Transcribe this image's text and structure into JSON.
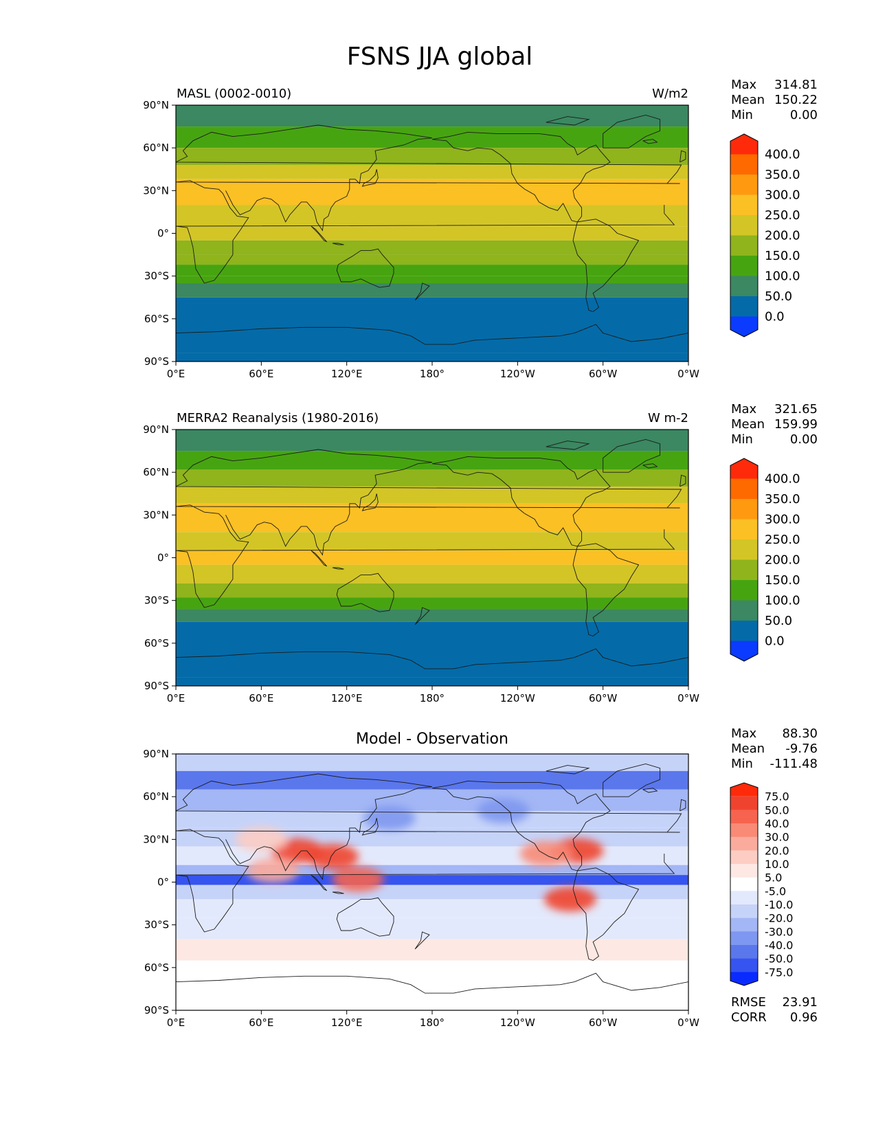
{
  "title": "FSNS JJA global",
  "chart_data": [
    {
      "type": "heatmap",
      "title": "MASL (0002-0010)",
      "units": "W/m2",
      "x_ticks": [
        "0°E",
        "60°E",
        "120°E",
        "180°",
        "120°W",
        "60°W",
        "0°W"
      ],
      "y_ticks": [
        "90°N",
        "60°N",
        "30°N",
        "0°",
        "30°S",
        "60°S",
        "90°S"
      ],
      "xlim": [
        0,
        360
      ],
      "ylim": [
        -90,
        90
      ],
      "stats": {
        "labels": [
          "Max",
          "Mean",
          "Min"
        ],
        "values": [
          "314.81",
          "150.22",
          "0.00"
        ]
      },
      "colorbar": {
        "levels": [
          "400.0",
          "350.0",
          "300.0",
          "250.0",
          "200.0",
          "150.0",
          "100.0",
          "50.0",
          "0.0"
        ],
        "colors": [
          "#ff2a0a",
          "#ff6a00",
          "#ff9a10",
          "#fbc024",
          "#d3c526",
          "#8fb41c",
          "#47a411",
          "#3b8862",
          "#046ba8",
          "#0a3bff"
        ]
      },
      "zonal_bands": [
        {
          "lat": [
            90,
            75
          ],
          "value": 80
        },
        {
          "lat": [
            75,
            60
          ],
          "value": 130
        },
        {
          "lat": [
            60,
            48
          ],
          "value": 160
        },
        {
          "lat": [
            48,
            38
          ],
          "value": 210
        },
        {
          "lat": [
            38,
            20
          ],
          "value": 255
        },
        {
          "lat": [
            20,
            5
          ],
          "value": 200
        },
        {
          "lat": [
            5,
            -5
          ],
          "value": 230
        },
        {
          "lat": [
            -5,
            -15
          ],
          "value": 190
        },
        {
          "lat": [
            -15,
            -22
          ],
          "value": 175
        },
        {
          "lat": [
            -22,
            -30
          ],
          "value": 130
        },
        {
          "lat": [
            -30,
            -35
          ],
          "value": 110
        },
        {
          "lat": [
            -35,
            -45
          ],
          "value": 80
        },
        {
          "lat": [
            -45,
            -84
          ],
          "value": 30
        },
        {
          "lat": [
            -84,
            -90
          ],
          "value": 0
        }
      ]
    },
    {
      "type": "heatmap",
      "title": "MERRA2 Reanalysis (1980-2016)",
      "units": "W m-2",
      "x_ticks": [
        "0°E",
        "60°E",
        "120°E",
        "180°",
        "120°W",
        "60°W",
        "0°W"
      ],
      "y_ticks": [
        "90°N",
        "60°N",
        "30°N",
        "0°",
        "30°S",
        "60°S",
        "90°S"
      ],
      "xlim": [
        0,
        360
      ],
      "ylim": [
        -90,
        90
      ],
      "stats": {
        "labels": [
          "Max",
          "Mean",
          "Min"
        ],
        "values": [
          "321.65",
          "159.99",
          "0.00"
        ]
      },
      "colorbar": {
        "levels": [
          "400.0",
          "350.0",
          "300.0",
          "250.0",
          "200.0",
          "150.0",
          "100.0",
          "50.0",
          "0.0"
        ],
        "colors": [
          "#ff2a0a",
          "#ff6a00",
          "#ff9a10",
          "#fbc024",
          "#d3c526",
          "#8fb41c",
          "#47a411",
          "#3b8862",
          "#046ba8",
          "#0a3bff"
        ]
      },
      "zonal_bands": [
        {
          "lat": [
            90,
            75
          ],
          "value": 80
        },
        {
          "lat": [
            75,
            62
          ],
          "value": 140
        },
        {
          "lat": [
            62,
            50
          ],
          "value": 180
        },
        {
          "lat": [
            50,
            38
          ],
          "value": 220
        },
        {
          "lat": [
            38,
            18
          ],
          "value": 260
        },
        {
          "lat": [
            18,
            5
          ],
          "value": 215
        },
        {
          "lat": [
            5,
            -5
          ],
          "value": 255
        },
        {
          "lat": [
            -5,
            -18
          ],
          "value": 215
        },
        {
          "lat": [
            -18,
            -28
          ],
          "value": 175
        },
        {
          "lat": [
            -28,
            -36
          ],
          "value": 130
        },
        {
          "lat": [
            -36,
            -45
          ],
          "value": 80
        },
        {
          "lat": [
            -45,
            -84
          ],
          "value": 30
        },
        {
          "lat": [
            -84,
            -90
          ],
          "value": 0
        }
      ]
    },
    {
      "type": "heatmap",
      "title": "Model - Observation",
      "x_ticks": [
        "0°E",
        "60°E",
        "120°E",
        "180°",
        "120°W",
        "60°W",
        "0°W"
      ],
      "y_ticks": [
        "90°N",
        "60°N",
        "30°N",
        "0°",
        "30°S",
        "60°S",
        "90°S"
      ],
      "xlim": [
        0,
        360
      ],
      "ylim": [
        -90,
        90
      ],
      "stats": {
        "labels": [
          "Max",
          "Mean",
          "Min"
        ],
        "values": [
          "88.30",
          "-9.76",
          "-111.48"
        ]
      },
      "metrics": {
        "labels": [
          "RMSE",
          "CORR"
        ],
        "values": [
          "23.91",
          "0.96"
        ]
      },
      "colorbar": {
        "levels": [
          "75.0",
          "50.0",
          "40.0",
          "30.0",
          "20.0",
          "10.0",
          "5.0",
          "-5.0",
          "-10.0",
          "-20.0",
          "-30.0",
          "-40.0",
          "-50.0",
          "-75.0"
        ],
        "colors": [
          "#ff2a0a",
          "#f0432f",
          "#f6644f",
          "#f88a76",
          "#fbab9c",
          "#fdcdc3",
          "#fde8e3",
          "#ffffff",
          "#e3e9fc",
          "#c6d3f9",
          "#a3b6f5",
          "#7e97f0",
          "#5a77ec",
          "#3654ef",
          "#0a2bff"
        ]
      },
      "zonal_bands": [
        {
          "lat": [
            90,
            78
          ],
          "value": -12
        },
        {
          "lat": [
            78,
            65
          ],
          "value": -45
        },
        {
          "lat": [
            65,
            50
          ],
          "value": -28
        },
        {
          "lat": [
            50,
            38
          ],
          "value": -18
        },
        {
          "lat": [
            38,
            25
          ],
          "value": -12
        },
        {
          "lat": [
            25,
            12
          ],
          "value": -8
        },
        {
          "lat": [
            12,
            5
          ],
          "value": -25
        },
        {
          "lat": [
            5,
            -2
          ],
          "value": -55
        },
        {
          "lat": [
            -2,
            -12
          ],
          "value": -12
        },
        {
          "lat": [
            -12,
            -25
          ],
          "value": -8
        },
        {
          "lat": [
            -25,
            -40
          ],
          "value": -6
        },
        {
          "lat": [
            -40,
            -55
          ],
          "value": 8
        },
        {
          "lat": [
            -55,
            -90
          ],
          "value": 0
        }
      ],
      "anomalies": [
        {
          "lon": 85,
          "lat": 22,
          "value": 60
        },
        {
          "lon": 110,
          "lat": 18,
          "value": 50
        },
        {
          "lon": 128,
          "lat": 2,
          "value": 40
        },
        {
          "lon": 282,
          "lat": 22,
          "value": 60
        },
        {
          "lon": 260,
          "lat": 20,
          "value": 35
        },
        {
          "lon": 277,
          "lat": -12,
          "value": 50
        },
        {
          "lon": 68,
          "lat": 8,
          "value": 25
        },
        {
          "lon": 60,
          "lat": 30,
          "value": 15
        },
        {
          "lon": 150,
          "lat": 45,
          "value": -40
        },
        {
          "lon": 230,
          "lat": 50,
          "value": -40
        }
      ]
    }
  ]
}
